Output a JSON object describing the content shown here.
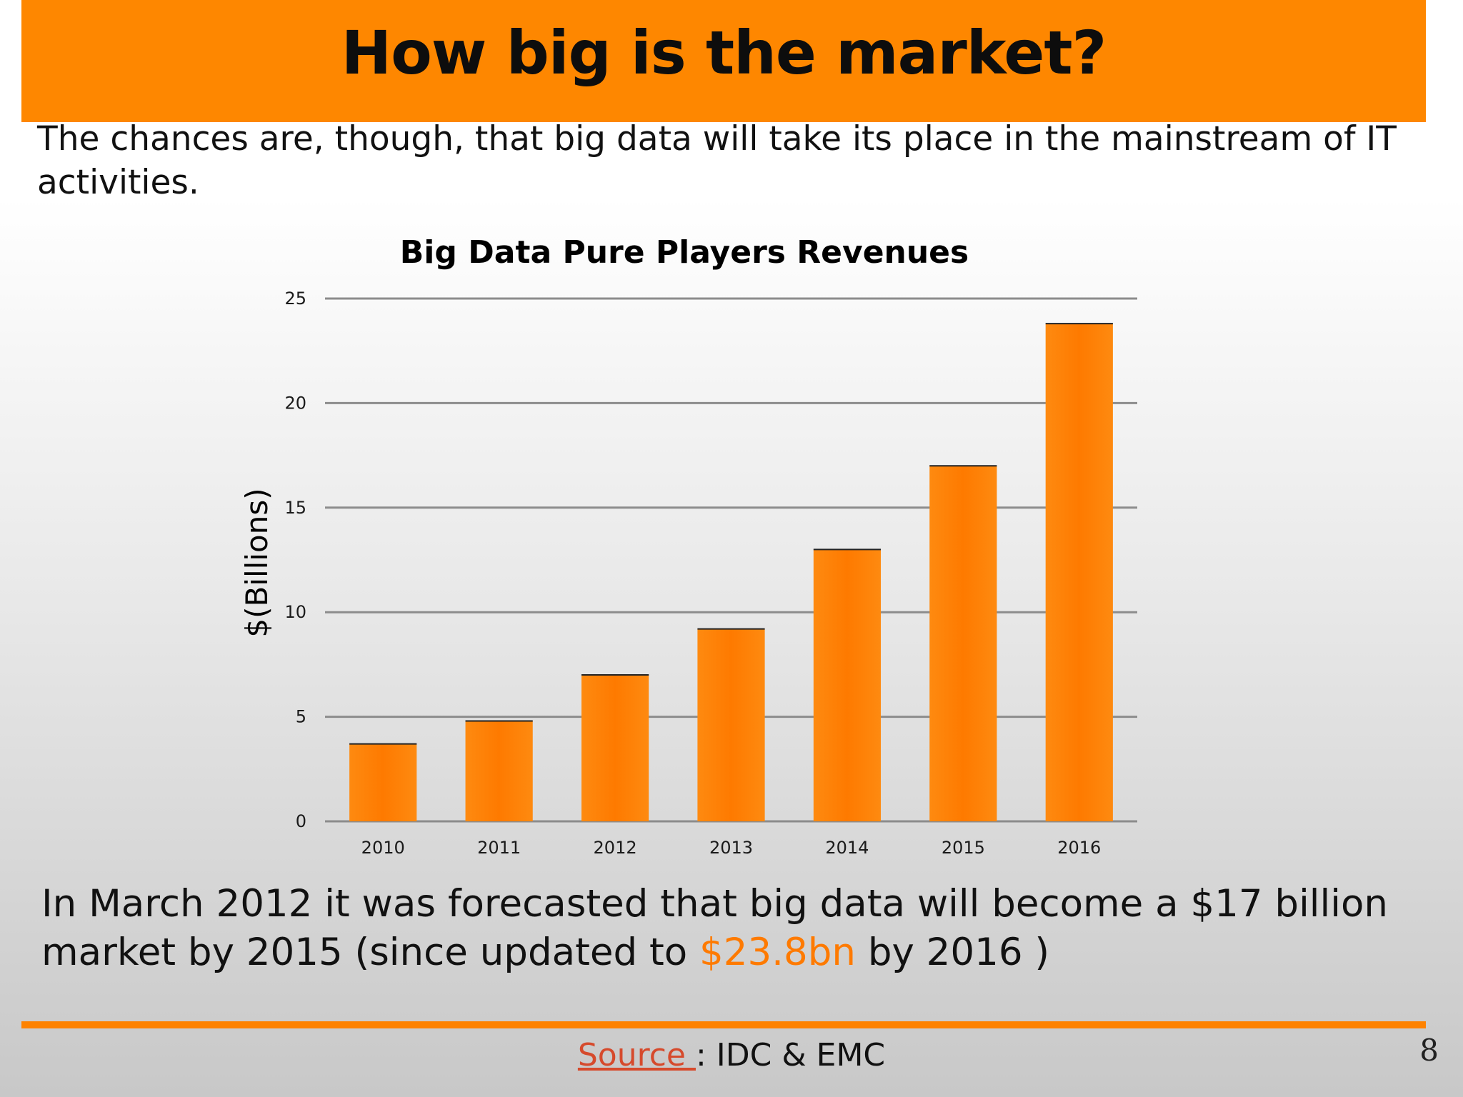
{
  "slide": {
    "title": "How big is the market?",
    "intro": "The chances are, though, that big data will take its place in the mainstream of IT activities.",
    "forecast_before": "In March 2012 it was forecasted that  big data will become a $17 billion market by 2015  (since updated to ",
    "forecast_highlight": "$23.8bn",
    "forecast_after": " by 2016 )",
    "source_link": "Source ",
    "source_text": ": IDC & EMC",
    "page_number": "8"
  },
  "colors": {
    "accent": "#fe8700",
    "bar": "#fe7f00",
    "highlight": "#fe7a00",
    "link": "#d64a2c"
  },
  "chart_data": {
    "type": "bar",
    "title": "Big Data Pure Players Revenues",
    "xlabel": "",
    "ylabel": "$(Billions)",
    "categories": [
      "2010",
      "2011",
      "2012",
      "2013",
      "2014",
      "2015",
      "2016"
    ],
    "values": [
      3.7,
      4.8,
      7.0,
      9.2,
      13.0,
      17.0,
      23.8
    ],
    "ylim": [
      0,
      25
    ],
    "yticks": [
      0,
      5,
      10,
      15,
      20,
      25
    ],
    "grid": true,
    "legend": "none"
  }
}
